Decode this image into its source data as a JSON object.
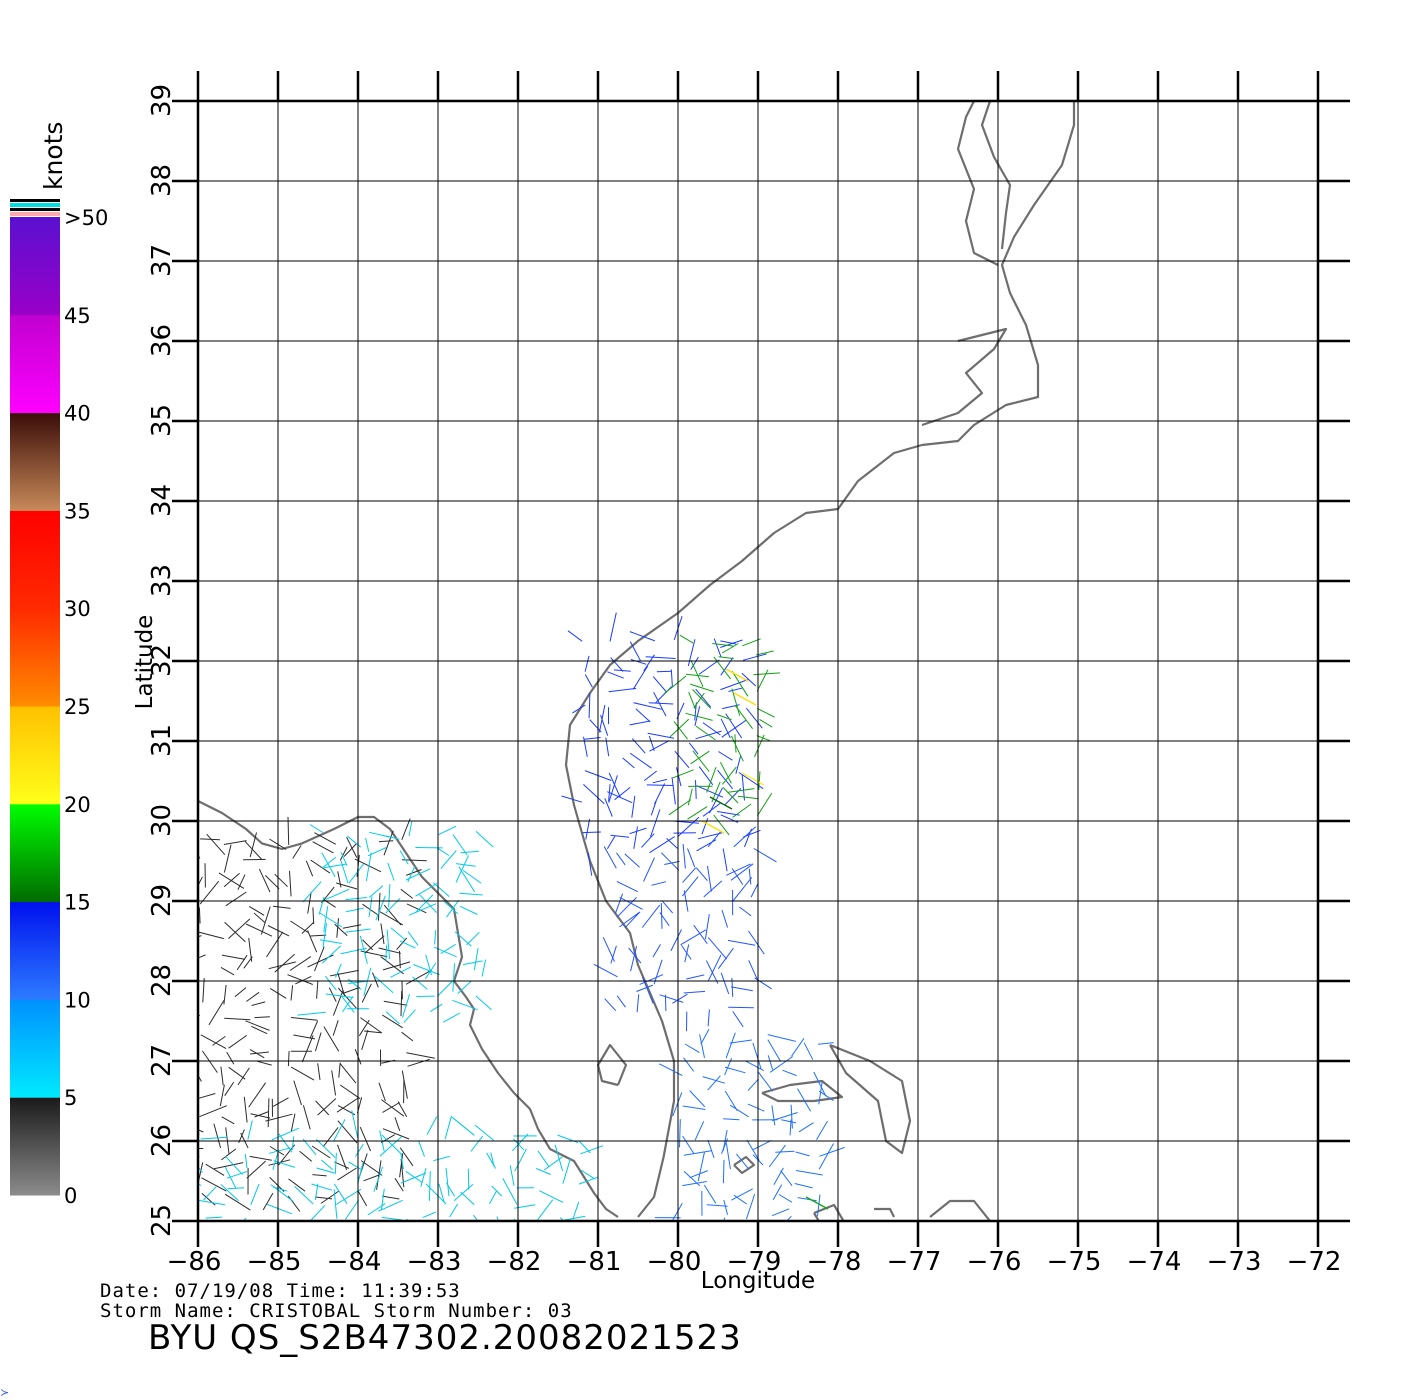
{
  "map": {
    "xlabel": "Longitude",
    "ylabel": "Latitude",
    "lon_ticks": [
      "-86",
      "-85",
      "-84",
      "-83",
      "-82",
      "-81",
      "-80",
      "-79",
      "-78",
      "-77",
      "-76",
      "-75",
      "-74",
      "-73",
      "-72"
    ],
    "lat_ticks": [
      "25",
      "26",
      "27",
      "28",
      "29",
      "30",
      "31",
      "32",
      "33",
      "34",
      "35",
      "36",
      "37",
      "38",
      "39"
    ],
    "lon_range": [
      -86,
      -72
    ],
    "lat_range": [
      25,
      39
    ],
    "coastline_color": "#6e6e6e",
    "grid_color": "#000000"
  },
  "colorbar": {
    "unit_label": "knots",
    "labels": [
      "0",
      "5",
      "10",
      "15",
      "20",
      "25",
      "30",
      "35",
      "40",
      "45",
      ">50"
    ],
    "segments": [
      {
        "from": 0,
        "to": 5,
        "colors": [
          "#8c8c8c",
          "#1a1a1a"
        ]
      },
      {
        "from": 5,
        "to": 10,
        "colors": [
          "#00eaff",
          "#0090ff"
        ]
      },
      {
        "from": 10,
        "to": 15,
        "colors": [
          "#2d7cff",
          "#0010ee"
        ]
      },
      {
        "from": 15,
        "to": 20,
        "colors": [
          "#006b00",
          "#00ff00"
        ]
      },
      {
        "from": 20,
        "to": 25,
        "colors": [
          "#ffff1a",
          "#ffc000"
        ]
      },
      {
        "from": 25,
        "to": 30,
        "colors": [
          "#ff8c00",
          "#ff2a00"
        ]
      },
      {
        "from": 30,
        "to": 35,
        "colors": [
          "#ff2a00",
          "#ff0000"
        ]
      },
      {
        "from": 35,
        "to": 40,
        "colors": [
          "#c88a5a",
          "#3a0c08"
        ]
      },
      {
        "from": 40,
        "to": 45,
        "colors": [
          "#ff00ff",
          "#c000d0"
        ]
      },
      {
        "from": 45,
        "to": 50,
        "colors": [
          "#9a00c8",
          "#5a10d0"
        ]
      }
    ]
  },
  "footer": {
    "date_line": "Date: 07/19/08   Time: 11:39:53",
    "storm_line": "Storm Name: CRISTOBAL   Storm Number: 03",
    "product_id": "BYU QS_S2B47302.20082021523"
  },
  "coast": [
    {
      "name": "gulf-coast-florida",
      "pts": [
        [
          -86,
          30.25
        ],
        [
          -85.7,
          30.1
        ],
        [
          -85.4,
          29.9
        ],
        [
          -85.2,
          29.72
        ],
        [
          -84.95,
          29.65
        ],
        [
          -84.7,
          29.72
        ],
        [
          -84.3,
          29.9
        ],
        [
          -84.0,
          30.05
        ],
        [
          -83.8,
          30.05
        ],
        [
          -83.6,
          29.9
        ],
        [
          -83.4,
          29.6
        ],
        [
          -83.2,
          29.3
        ],
        [
          -83.0,
          29.1
        ],
        [
          -82.8,
          28.9
        ],
        [
          -82.75,
          28.6
        ],
        [
          -82.7,
          28.3
        ],
        [
          -82.8,
          28.0
        ],
        [
          -82.65,
          27.8
        ],
        [
          -82.55,
          27.65
        ],
        [
          -82.6,
          27.45
        ],
        [
          -82.45,
          27.15
        ],
        [
          -82.25,
          26.85
        ],
        [
          -82.05,
          26.6
        ],
        [
          -81.85,
          26.4
        ],
        [
          -81.75,
          26.15
        ],
        [
          -81.6,
          25.9
        ],
        [
          -81.3,
          25.75
        ],
        [
          -81.05,
          25.35
        ],
        [
          -80.9,
          25.15
        ],
        [
          -80.75,
          25.05
        ]
      ]
    },
    {
      "name": "atlantic-coast",
      "pts": [
        [
          -80.5,
          25.05
        ],
        [
          -80.3,
          25.3
        ],
        [
          -80.18,
          25.8
        ],
        [
          -80.05,
          26.5
        ],
        [
          -80.05,
          27.0
        ],
        [
          -80.2,
          27.5
        ],
        [
          -80.5,
          28.2
        ],
        [
          -80.6,
          28.6
        ],
        [
          -80.9,
          29.0
        ],
        [
          -81.1,
          29.5
        ],
        [
          -81.3,
          30.2
        ],
        [
          -81.4,
          30.7
        ],
        [
          -81.35,
          31.2
        ],
        [
          -81.1,
          31.6
        ],
        [
          -80.85,
          31.95
        ],
        [
          -80.5,
          32.25
        ],
        [
          -80.0,
          32.6
        ],
        [
          -79.6,
          32.95
        ],
        [
          -79.2,
          33.25
        ],
        [
          -78.8,
          33.6
        ],
        [
          -78.4,
          33.85
        ],
        [
          -78.0,
          33.9
        ],
        [
          -77.75,
          34.25
        ],
        [
          -77.3,
          34.6
        ],
        [
          -76.95,
          34.7
        ],
        [
          -76.5,
          34.75
        ],
        [
          -76.3,
          34.95
        ],
        [
          -75.9,
          35.2
        ],
        [
          -75.5,
          35.3
        ],
        [
          -75.5,
          35.7
        ],
        [
          -75.65,
          36.2
        ],
        [
          -75.85,
          36.6
        ],
        [
          -75.95,
          36.95
        ],
        [
          -75.8,
          37.3
        ],
        [
          -75.55,
          37.7
        ],
        [
          -75.2,
          38.2
        ],
        [
          -75.05,
          38.7
        ],
        [
          -75.05,
          39.0
        ]
      ]
    },
    {
      "name": "chesapeake-west",
      "pts": [
        [
          -76.0,
          36.95
        ],
        [
          -76.3,
          37.1
        ],
        [
          -76.4,
          37.5
        ],
        [
          -76.3,
          37.9
        ],
        [
          -76.5,
          38.4
        ],
        [
          -76.4,
          38.8
        ],
        [
          -76.3,
          39.0
        ]
      ]
    },
    {
      "name": "chesapeake-east",
      "pts": [
        [
          -75.95,
          37.15
        ],
        [
          -75.9,
          37.6
        ],
        [
          -75.85,
          37.95
        ],
        [
          -76.05,
          38.3
        ],
        [
          -76.2,
          38.7
        ],
        [
          -76.1,
          39.0
        ]
      ]
    },
    {
      "name": "pamlico-sound",
      "pts": [
        [
          -76.95,
          34.95
        ],
        [
          -76.5,
          35.1
        ],
        [
          -76.2,
          35.35
        ],
        [
          -76.4,
          35.6
        ],
        [
          -76.05,
          35.9
        ],
        [
          -75.9,
          36.15
        ],
        [
          -76.5,
          36.0
        ]
      ]
    },
    {
      "name": "lake-okeechobee",
      "pts": [
        [
          -80.75,
          26.7
        ],
        [
          -80.65,
          26.95
        ],
        [
          -80.85,
          27.2
        ],
        [
          -81.0,
          26.95
        ],
        [
          -80.95,
          26.75
        ],
        [
          -80.75,
          26.7
        ]
      ]
    },
    {
      "name": "grand-bahama",
      "pts": [
        [
          -78.95,
          26.6
        ],
        [
          -78.6,
          26.7
        ],
        [
          -78.2,
          26.75
        ],
        [
          -77.95,
          26.55
        ],
        [
          -78.3,
          26.5
        ],
        [
          -78.75,
          26.5
        ],
        [
          -78.95,
          26.6
        ]
      ]
    },
    {
      "name": "great-abaco",
      "pts": [
        [
          -78.1,
          27.2
        ],
        [
          -77.6,
          27.0
        ],
        [
          -77.2,
          26.75
        ],
        [
          -77.1,
          26.25
        ],
        [
          -77.2,
          25.85
        ],
        [
          -77.4,
          26.0
        ],
        [
          -77.5,
          26.5
        ],
        [
          -77.9,
          26.85
        ],
        [
          -78.1,
          27.2
        ]
      ]
    },
    {
      "name": "andros",
      "pts": [
        [
          -78.3,
          25.1
        ],
        [
          -78.05,
          25.2
        ],
        [
          -77.9,
          24.95
        ],
        [
          -78.15,
          24.85
        ],
        [
          -78.3,
          25.1
        ]
      ]
    },
    {
      "name": "eleuthera",
      "pts": [
        [
          -76.85,
          25.05
        ],
        [
          -76.6,
          25.25
        ],
        [
          -76.3,
          25.25
        ],
        [
          -76.1,
          25.0
        ]
      ]
    },
    {
      "name": "small-cay",
      "pts": [
        [
          -79.3,
          25.7
        ],
        [
          -79.15,
          25.8
        ],
        [
          -79.05,
          25.7
        ],
        [
          -79.2,
          25.6
        ],
        [
          -79.3,
          25.7
        ]
      ]
    },
    {
      "name": "new-providence",
      "pts": [
        [
          -77.55,
          25.15
        ],
        [
          -77.35,
          25.15
        ],
        [
          -77.3,
          25.05
        ]
      ]
    }
  ],
  "wind_barbs": {
    "regions": [
      {
        "name": "gulf-west",
        "lon": [
          -86.0,
          -83.3
        ],
        "lat": [
          25.3,
          29.7
        ],
        "color": "#2b2b2b"
      },
      {
        "name": "gulf-east",
        "lon": [
          -84.5,
          -82.3
        ],
        "lat": [
          27.6,
          29.8
        ],
        "color": "#00ccee"
      },
      {
        "name": "gulf-south",
        "lon": [
          -86.0,
          -81.2
        ],
        "lat": [
          25.0,
          26.1
        ],
        "color": "#00c8e8"
      },
      {
        "name": "atlantic-north",
        "lon": [
          -81.2,
          -79.0
        ],
        "lat": [
          29.6,
          32.3
        ],
        "color": "#1a3cff"
      },
      {
        "name": "atlantic-offshore",
        "lon": [
          -79.9,
          -78.9
        ],
        "lat": [
          30.0,
          32.3
        ],
        "color": "#12a012"
      },
      {
        "name": "atlantic-central",
        "lon": [
          -80.8,
          -79.0
        ],
        "lat": [
          27.6,
          29.6
        ],
        "color": "#2255ff"
      },
      {
        "name": "straits",
        "lon": [
          -80.0,
          -78.1
        ],
        "lat": [
          25.0,
          27.3
        ],
        "color": "#1e70ff"
      }
    ],
    "accent_points": [
      {
        "lon": -79.4,
        "lat": 31.9,
        "color": "#ffdd00"
      },
      {
        "lon": -79.3,
        "lat": 31.6,
        "color": "#ffdd00"
      },
      {
        "lon": -79.2,
        "lat": 30.6,
        "color": "#ffee33"
      },
      {
        "lon": -79.7,
        "lat": 30.0,
        "color": "#ffdd00"
      },
      {
        "lon": -78.4,
        "lat": 25.3,
        "color": "#13a813"
      },
      {
        "lon": -79.6,
        "lat": 30.3,
        "color": "#0a6a0a"
      }
    ]
  }
}
